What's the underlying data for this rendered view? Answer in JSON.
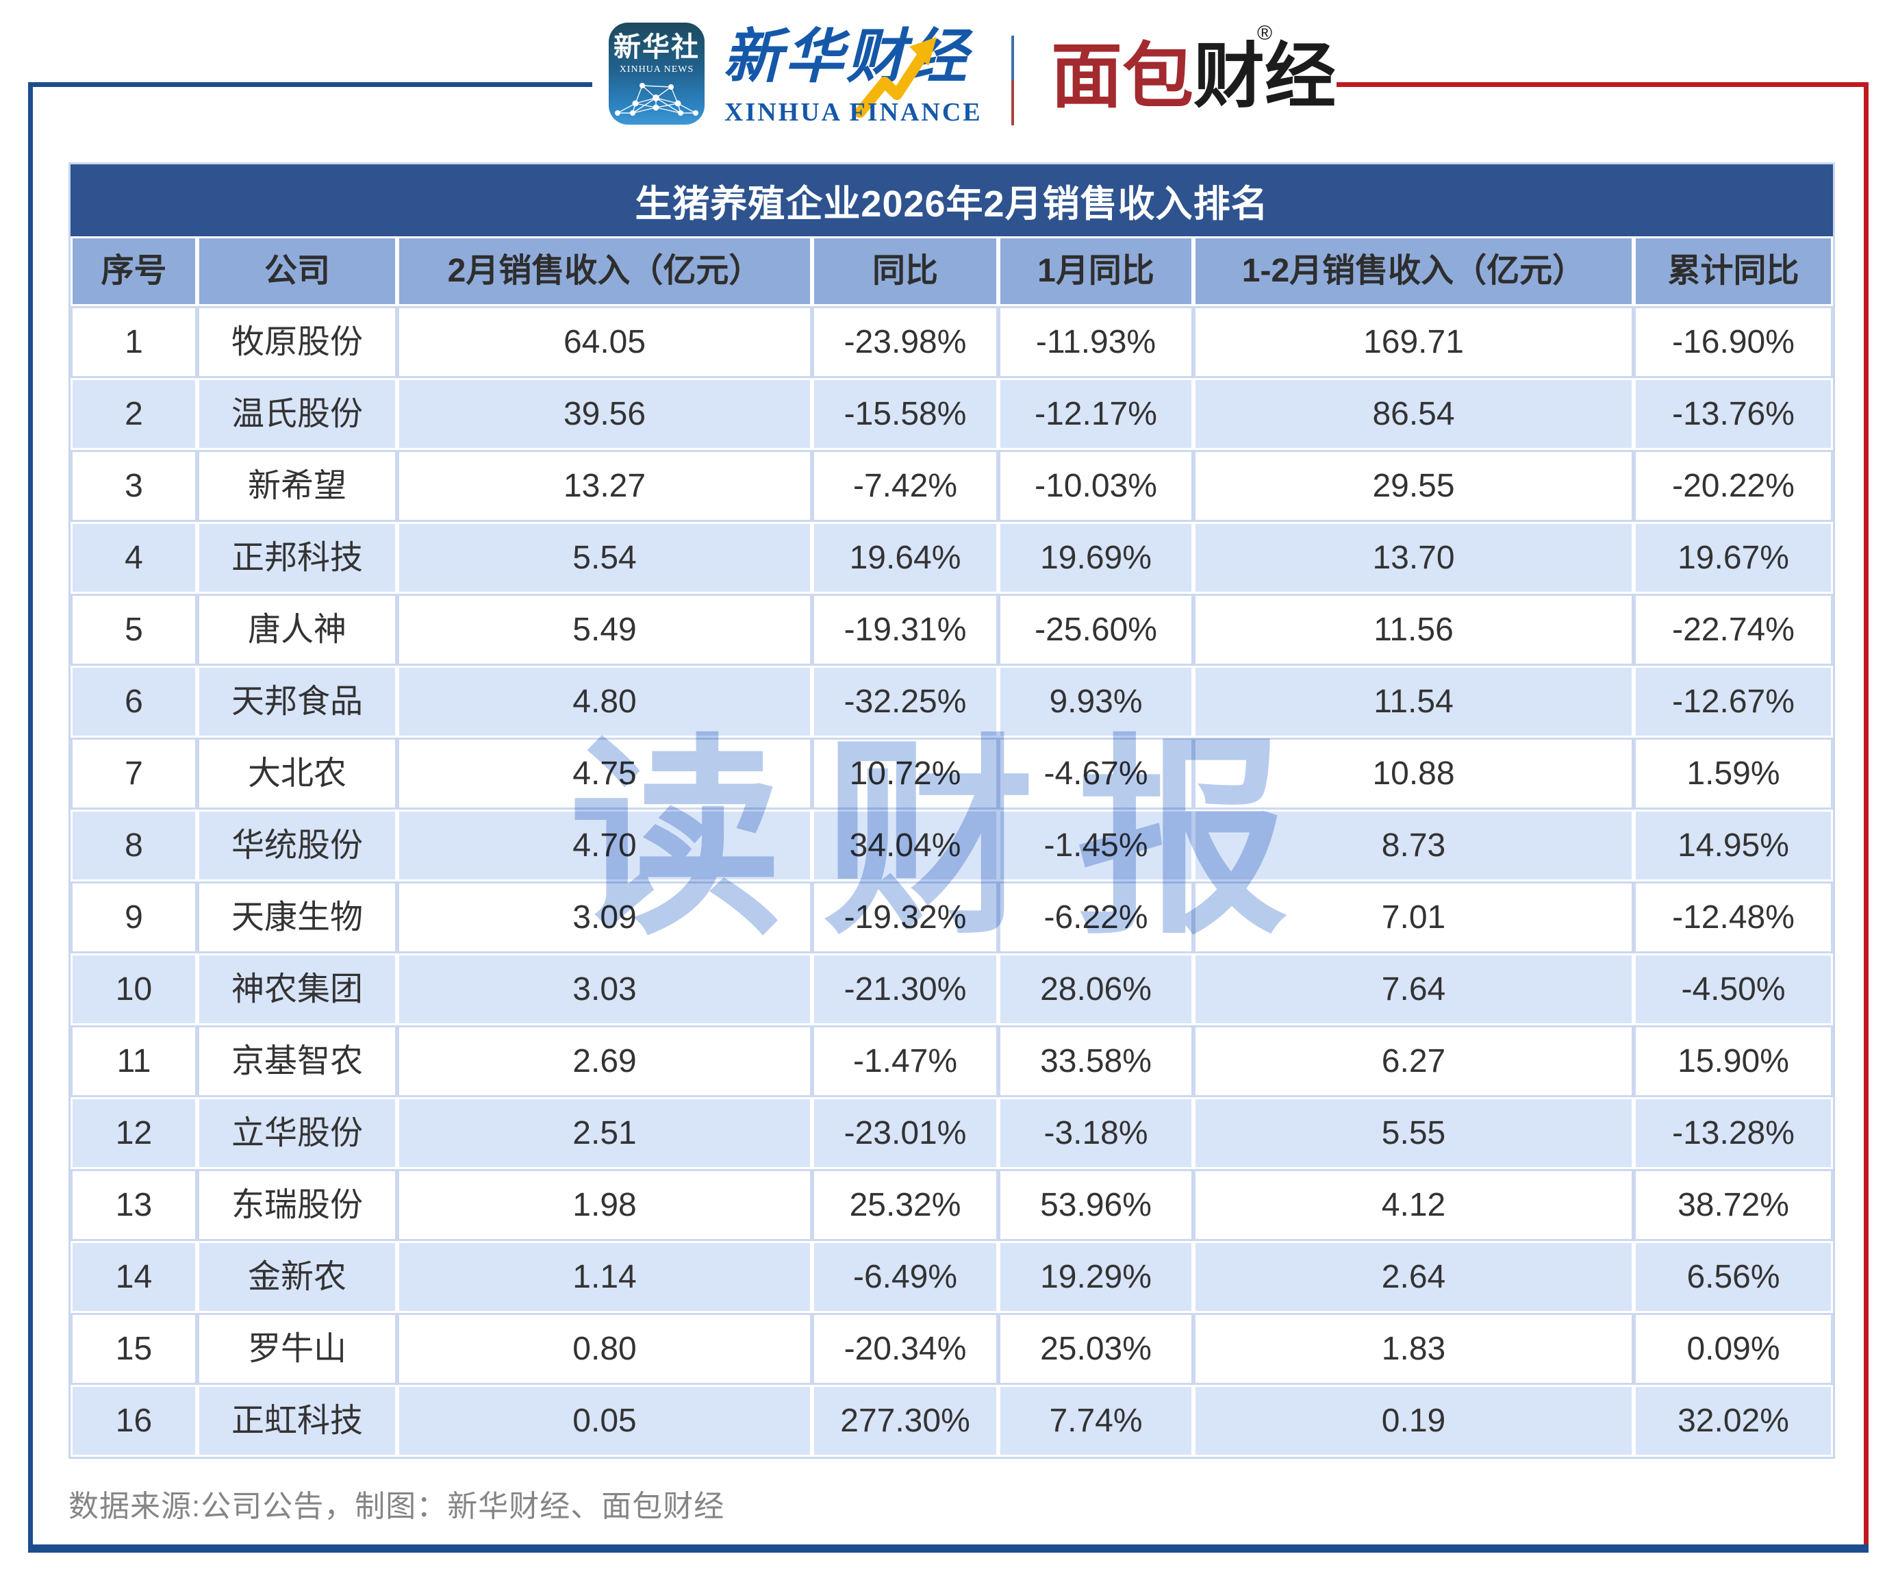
{
  "brand": {
    "xinhua_icon": {
      "line1": "新华社",
      "line2": "XINHUA NEWS"
    },
    "xinhua_finance": {
      "cn": "新华财经",
      "en": "XINHUA FINANCE"
    },
    "mianbao": {
      "cn_red": "面包",
      "cn_black": "财经",
      "reg": "®"
    }
  },
  "chart_data": {
    "type": "table",
    "title": "生猪养殖企业2026年2月销售收入排名",
    "columns": [
      "序号",
      "公司",
      "2月销售收入（亿元）",
      "同比",
      "1月同比",
      "1-2月销售收入（亿元）",
      "累计同比"
    ],
    "rows": [
      [
        "1",
        "牧原股份",
        "64.05",
        "-23.98%",
        "-11.93%",
        "169.71",
        "-16.90%"
      ],
      [
        "2",
        "温氏股份",
        "39.56",
        "-15.58%",
        "-12.17%",
        "86.54",
        "-13.76%"
      ],
      [
        "3",
        "新希望",
        "13.27",
        "-7.42%",
        "-10.03%",
        "29.55",
        "-20.22%"
      ],
      [
        "4",
        "正邦科技",
        "5.54",
        "19.64%",
        "19.69%",
        "13.70",
        "19.67%"
      ],
      [
        "5",
        "唐人神",
        "5.49",
        "-19.31%",
        "-25.60%",
        "11.56",
        "-22.74%"
      ],
      [
        "6",
        "天邦食品",
        "4.80",
        "-32.25%",
        "9.93%",
        "11.54",
        "-12.67%"
      ],
      [
        "7",
        "大北农",
        "4.75",
        "10.72%",
        "-4.67%",
        "10.88",
        "1.59%"
      ],
      [
        "8",
        "华统股份",
        "4.70",
        "34.04%",
        "-1.45%",
        "8.73",
        "14.95%"
      ],
      [
        "9",
        "天康生物",
        "3.09",
        "-19.32%",
        "-6.22%",
        "7.01",
        "-12.48%"
      ],
      [
        "10",
        "神农集团",
        "3.03",
        "-21.30%",
        "28.06%",
        "7.64",
        "-4.50%"
      ],
      [
        "11",
        "京基智农",
        "2.69",
        "-1.47%",
        "33.58%",
        "6.27",
        "15.90%"
      ],
      [
        "12",
        "立华股份",
        "2.51",
        "-23.01%",
        "-3.18%",
        "5.55",
        "-13.28%"
      ],
      [
        "13",
        "东瑞股份",
        "1.98",
        "25.32%",
        "53.96%",
        "4.12",
        "38.72%"
      ],
      [
        "14",
        "金新农",
        "1.14",
        "-6.49%",
        "19.29%",
        "2.64",
        "6.56%"
      ],
      [
        "15",
        "罗牛山",
        "0.80",
        "-20.34%",
        "25.03%",
        "1.83",
        "0.09%"
      ],
      [
        "16",
        "正虹科技",
        "0.05",
        "277.30%",
        "7.74%",
        "0.19",
        "32.02%"
      ]
    ]
  },
  "watermark": "读财报",
  "source_note": "数据来源:公司公告，制图：新华财经、面包财经",
  "colors": {
    "title_bar": "#2e538f",
    "header_row": "#8fabd9",
    "row_alt_blue": "#d8e4f8",
    "cell_border_light": "#ccd8f0",
    "frame_blue": "#1c4e8e",
    "frame_red": "#bf1a22",
    "logo_blue": "#1558a9",
    "logo_red": "#a32a2e",
    "arrow_gold": "#f5b50a",
    "watermark_blue": "#b7cbec",
    "footer_gray": "#858585"
  }
}
